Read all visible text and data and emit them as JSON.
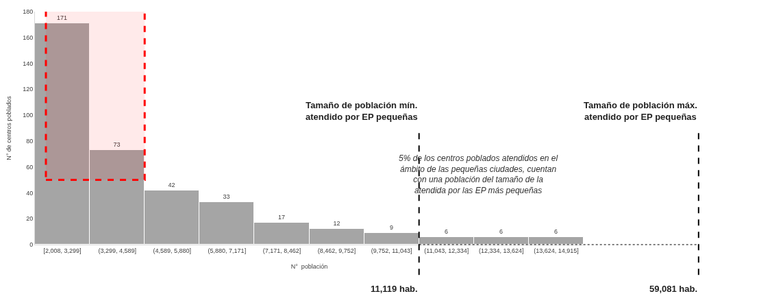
{
  "chart_data": {
    "type": "bar",
    "xlabel": "N°  población",
    "ylabel": "N° de centros poblados",
    "categories": [
      "[2,008, 3,299]",
      "(3,299, 4,589]",
      "(4,589, 5,880]",
      "(5,880, 7,171]",
      "(7,171, 8,462]",
      "(8,462, 9,752]",
      "(9,752, 11,043]",
      "(11,043, 12,334]",
      "(12,334, 13,624]",
      "(13,624, 14,915]"
    ],
    "values": [
      171,
      73,
      42,
      33,
      17,
      12,
      9,
      6,
      6,
      6
    ],
    "color": "#a5a5a5",
    "data_labels": true,
    "ylim": [
      0,
      180
    ],
    "yticks": [
      0,
      20,
      40,
      60,
      80,
      100,
      120,
      140,
      160,
      180
    ],
    "bands": [
      {
        "axis": "y",
        "from": 50,
        "to": 180,
        "color": "#ff0000"
      }
    ],
    "annotations": [
      "5% de los centros poblados atendidos en el\námbito de las pequeñas ciudades, cuentan\ncon una población del tamaño de la\natendida por las EP más pequeñas",
      "Tamaño de población mín.\natendido por EP pequeñas",
      "11,119 hab.",
      "Tamaño de población máx.\natendido por EP pequeñas",
      "59,081 hab."
    ]
  }
}
